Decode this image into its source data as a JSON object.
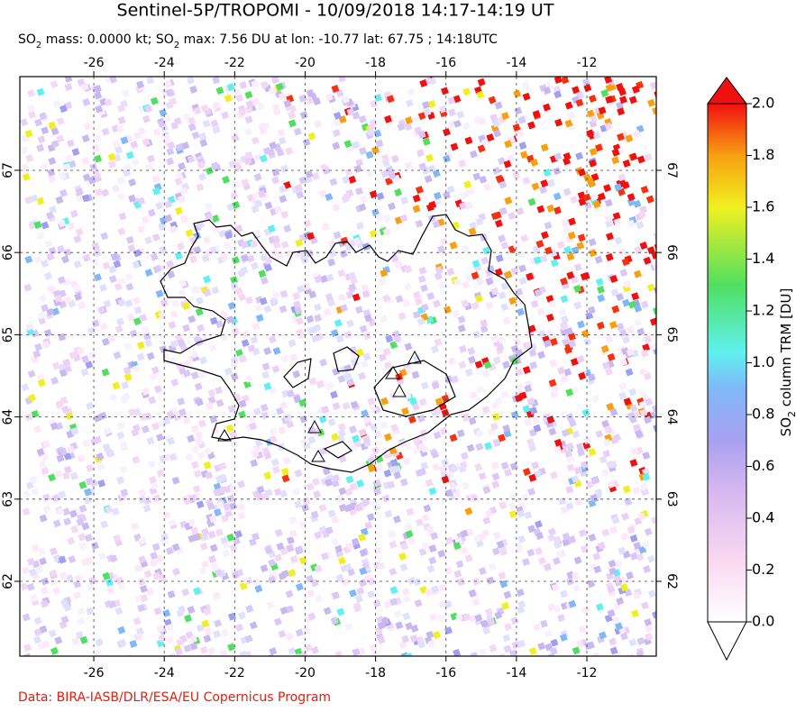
{
  "title": "Sentinel-5P/TROPOMI - 10/09/2018 14:17-14:19 UT",
  "subtitle": [
    "SO",
    "2",
    " mass: 0.0000 kt; SO",
    "2",
    " max: 7.56 DU at lon: -10.77 lat: 67.75 ; 14:18UTC"
  ],
  "map": {
    "lonlim": [
      -28.1,
      -10.03
    ],
    "latlim": [
      61.09,
      68.14
    ],
    "lon_ticks": [
      -26,
      -24,
      -22,
      -20,
      -18,
      -16,
      -14,
      -12
    ],
    "lat_ticks": [
      62,
      63,
      64,
      65,
      66,
      67
    ]
  },
  "colorbar": {
    "label": [
      "SO",
      "2",
      " column TRM [DU]"
    ],
    "range": [
      0,
      2
    ],
    "ticks": [
      {
        "value": 0,
        "label": "0.0"
      },
      {
        "value": 0.2,
        "label": "0.2"
      },
      {
        "value": 0.4,
        "label": "0.4"
      },
      {
        "value": 0.6,
        "label": "0.6"
      },
      {
        "value": 0.8,
        "label": "0.8"
      },
      {
        "value": 1,
        "label": "1.0"
      },
      {
        "value": 1.2,
        "label": "1.2"
      },
      {
        "value": 1.4,
        "label": "1.4"
      },
      {
        "value": 1.6,
        "label": "1.6"
      },
      {
        "value": 1.8,
        "label": "1.8"
      },
      {
        "value": 2,
        "label": "2.0"
      }
    ]
  },
  "credit": "Data: BIRA-IASB/DLR/ESA/EU Copernicus Program"
}
